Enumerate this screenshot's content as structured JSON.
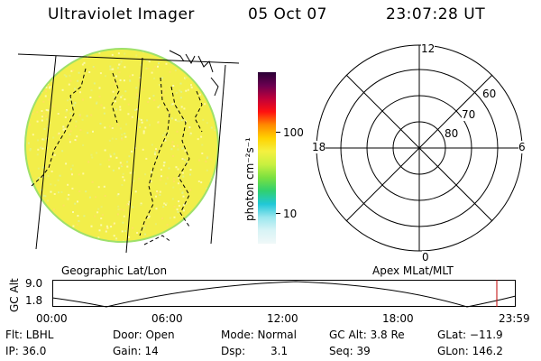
{
  "header": {
    "instrument": "Ultraviolet Imager",
    "date": "05 Oct 07",
    "time": "23:07:28 UT"
  },
  "globe": {
    "caption": "Geographic Lat/Lon",
    "fill_color": "#f2ee4a",
    "edge_color": "#9ee06a"
  },
  "colorbar": {
    "label": "photon cm⁻²s⁻¹",
    "ticks": [
      "100",
      "10"
    ],
    "colors": [
      "#2a0036",
      "#6a0050",
      "#c0003a",
      "#ff1010",
      "#ff8a00",
      "#ffd200",
      "#f4f040",
      "#c8f040",
      "#7ae040",
      "#30d070",
      "#20c8d8",
      "#9ae6ee",
      "#d8f4f6",
      "#f0f8f8"
    ]
  },
  "polar": {
    "caption": "Apex MLat/MLT",
    "mlt_labels": {
      "top": "12",
      "left": "18",
      "right": "6",
      "bottom": "0"
    },
    "lat_labels": [
      "60",
      "70",
      "80"
    ]
  },
  "altitude_plot": {
    "ylabel": "GC Alt",
    "ymax": "9.0",
    "ymin": "1.8",
    "xticks": [
      "00:00",
      "06:00",
      "12:00",
      "18:00",
      "23:59"
    ],
    "marker_color": "#c00000"
  },
  "info": {
    "filter": "Flt: LBHL",
    "door": "Door: Open",
    "mode": "Mode: Normal",
    "gc_alt": "GC Alt: 3.8 Re",
    "glat": "GLat: −11.9",
    "ip": "IP: 36.0",
    "gain": "Gain: 14",
    "dsp_label": "Dsp:",
    "dsp_value": "3.1",
    "seq": "Seq: 39",
    "glon": "GLon: 146.2"
  }
}
